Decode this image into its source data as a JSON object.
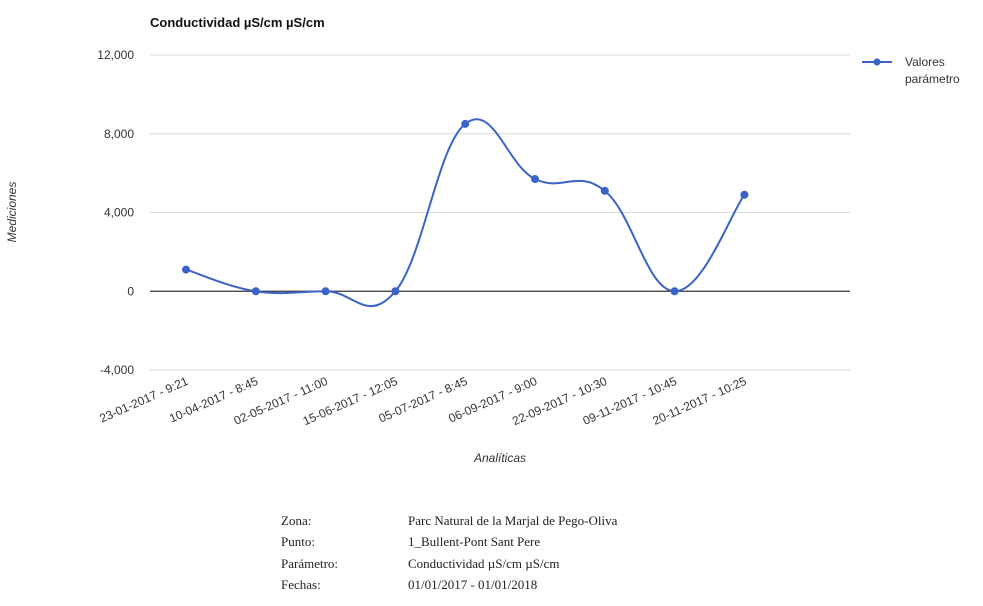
{
  "chart_data": {
    "type": "line",
    "title": "Conductividad µS/cm µS/cm",
    "xlabel": "Analíticas",
    "ylabel": "Mediciones",
    "categories": [
      "23-01-2017 - 9:21",
      "10-04-2017 - 8:45",
      "02-05-2017 - 11:00",
      "15-06-2017 - 12:05",
      "05-07-2017 - 8:45",
      "06-09-2017 - 9:00",
      "22-09-2017 - 10:30",
      "09-11-2017 - 10:45",
      "20-11-2017 - 10:25"
    ],
    "series": [
      {
        "name": "Valores parámetro",
        "values": [
          1100,
          0,
          0,
          0,
          8500,
          5700,
          5100,
          0,
          4900
        ]
      }
    ],
    "ylim": [
      -4000,
      12000
    ],
    "yticks": [
      "-4,000",
      "0",
      "4,000",
      "8,000",
      "12,000"
    ],
    "ytick_values": [
      -4000,
      0,
      4000,
      8000,
      12000
    ],
    "grid": true,
    "legend": "top-right",
    "line_color": "#3b62c9",
    "smooth": true
  },
  "info": [
    {
      "label": "Zona:",
      "value": "Parc Natural de la Marjal de Pego-Oliva"
    },
    {
      "label": "Punto:",
      "value": "1_Bullent-Pont Sant Pere"
    },
    {
      "label": "Parámetro:",
      "value": "Conductividad µS/cm µS/cm"
    },
    {
      "label": "Fechas:",
      "value": "01/01/2017 - 01/01/2018"
    }
  ]
}
